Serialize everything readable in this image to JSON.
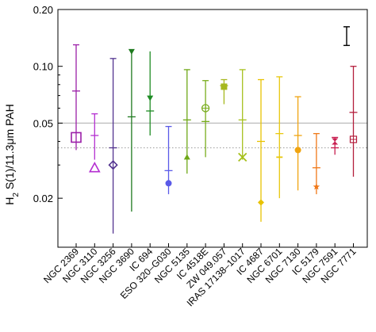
{
  "chart_data": {
    "type": "scatter",
    "title": "",
    "xlabel": "",
    "ylabel": "H₂ S(1)/11.3μm PAH",
    "ylabel_parts": {
      "main": "H",
      "sub": "2",
      "rest": " S(1)/11.3μm PAH"
    },
    "y_scale": "log",
    "ylim": [
      0.011,
      0.2
    ],
    "yticks": [
      {
        "value": 0.02,
        "label": "0.02"
      },
      {
        "value": 0.05,
        "label": "0.05"
      },
      {
        "value": 0.1,
        "label": "0.10"
      },
      {
        "value": 0.2,
        "label": "0.20"
      }
    ],
    "yminor_ticks": [
      0.03,
      0.04,
      0.06,
      0.07,
      0.08,
      0.09
    ],
    "reference_lines": [
      {
        "value": 0.05,
        "style": "solid",
        "color": "#bbbbbb"
      },
      {
        "value": 0.037,
        "style": "dotted",
        "color": "#aaaaaa"
      }
    ],
    "typical_error_bar": {
      "low": 0.129,
      "high": 0.162,
      "color": "#000000"
    },
    "categories": [
      "NGC 2369",
      "NGC 3110",
      "NGC 3256",
      "NGC 3690",
      "IC 694",
      "ESO 320–G030",
      "NGC 5135",
      "IC 4518E",
      "ZW 049.057",
      "IRAS 17138–1017",
      "IC 4687",
      "NGC 6701",
      "NGC 7130",
      "IC 5179",
      "NGC 7591",
      "NGC 7771"
    ],
    "series": [
      {
        "color": "#9b1fa8",
        "marker": "square-open",
        "value": 0.042,
        "median": 0.074,
        "low": 0.036,
        "high": 0.13
      },
      {
        "color": "#b42fd1",
        "marker": "triangle-open",
        "value": 0.029,
        "median": 0.043,
        "low": 0.032,
        "high": 0.056
      },
      {
        "color": "#52338f",
        "marker": "diamond-open",
        "value": 0.03,
        "median": 0.037,
        "low": 0.013,
        "high": 0.11
      },
      {
        "color": "#1e7a1e",
        "marker": "triangle-down",
        "value": 0.12,
        "median": 0.054,
        "low": 0.017,
        "high": 0.12
      },
      {
        "color": "#1e8c24",
        "marker": "triangle-down",
        "value": 0.068,
        "median": 0.058,
        "low": 0.043,
        "high": 0.12
      },
      {
        "color": "#5a5ae8",
        "marker": "circle",
        "value": 0.024,
        "median": 0.028,
        "low": 0.021,
        "high": 0.048
      },
      {
        "color": "#6fa818",
        "marker": "triangle",
        "value": 0.033,
        "median": 0.052,
        "low": 0.027,
        "high": 0.096
      },
      {
        "color": "#78ac1c",
        "marker": "circle-plus-open",
        "value": 0.06,
        "median": 0.051,
        "low": 0.033,
        "high": 0.084
      },
      {
        "color": "#a6b81e",
        "marker": "square",
        "value": 0.078,
        "median": 0.079,
        "low": 0.063,
        "high": 0.085
      },
      {
        "color": "#a6c01c",
        "marker": "x",
        "value": 0.033,
        "median": 0.052,
        "low": 0.032,
        "high": 0.096
      },
      {
        "color": "#e8c200",
        "marker": "diamond",
        "value": 0.019,
        "median": 0.04,
        "low": 0.015,
        "high": 0.085
      },
      {
        "color": "#e8c80e",
        "marker": "dash",
        "value": 0.033,
        "median": 0.044,
        "low": 0.02,
        "high": 0.088
      },
      {
        "color": "#f0a410",
        "marker": "circle",
        "value": 0.036,
        "median": 0.043,
        "low": 0.022,
        "high": 0.069
      },
      {
        "color": "#f07818",
        "marker": "star",
        "value": 0.023,
        "median": 0.029,
        "low": 0.021,
        "high": 0.044
      },
      {
        "color": "#c81e50",
        "marker": "hourglass",
        "value": 0.04,
        "median": 0.037,
        "low": 0.034,
        "high": 0.042
      },
      {
        "color": "#b41e3c",
        "marker": "square-plus-open",
        "value": 0.041,
        "median": 0.057,
        "low": 0.026,
        "high": 0.1
      }
    ]
  }
}
